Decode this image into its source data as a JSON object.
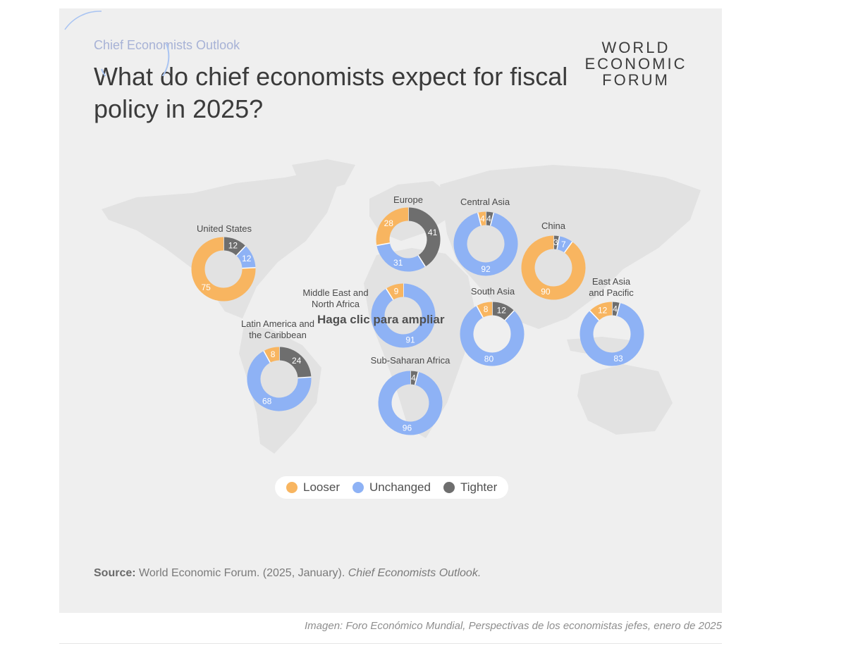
{
  "header": {
    "eyebrow": "Chief Economists Outlook",
    "title": "What do chief economists expect for fiscal policy in 2025?"
  },
  "logo": {
    "line1": "WORLD",
    "line2": "ECONOMIC",
    "line3": "FORUM"
  },
  "overlay": {
    "zoom_hint": "Haga clic para ampliar"
  },
  "legend": {
    "items": [
      {
        "label": "Looser",
        "color": "#f8b560"
      },
      {
        "label": "Unchanged",
        "color": "#8eb2f5"
      },
      {
        "label": "Tighter",
        "color": "#6e6e6e"
      }
    ]
  },
  "source": {
    "label": "Source:",
    "text": "World Economic Forum. (2025, January).",
    "publication": "Chief Economists Outlook."
  },
  "caption": "Imagen: Foro Económico Mundial, Perspectivas de los economistas jefes, enero de 2025",
  "chart_data": {
    "type": "pie",
    "subtype": "donut",
    "title": "What do chief economists expect for fiscal policy in 2025?",
    "categories": [
      "Looser",
      "Unchanged",
      "Tighter"
    ],
    "colors": {
      "Looser": "#f8b560",
      "Unchanged": "#8eb2f5",
      "Tighter": "#6e6e6e"
    },
    "regions": [
      {
        "name": "United States",
        "values": {
          "Looser": 75,
          "Unchanged": 12,
          "Tighter": 12
        }
      },
      {
        "name": "Europe",
        "values": {
          "Looser": 28,
          "Unchanged": 31,
          "Tighter": 41
        }
      },
      {
        "name": "Central Asia",
        "values": {
          "Looser": 4,
          "Unchanged": 92,
          "Tighter": 4
        }
      },
      {
        "name": "China",
        "values": {
          "Looser": 90,
          "Unchanged": 7,
          "Tighter": 3
        }
      },
      {
        "name": "Middle East and North Africa",
        "values": {
          "Looser": 9,
          "Unchanged": 91,
          "Tighter": 0
        }
      },
      {
        "name": "South Asia",
        "values": {
          "Looser": 8,
          "Unchanged": 80,
          "Tighter": 12
        }
      },
      {
        "name": "East Asia and Pacific",
        "values": {
          "Looser": 12,
          "Unchanged": 83,
          "Tighter": 4
        }
      },
      {
        "name": "Latin America and the Caribbean",
        "values": {
          "Looser": 8,
          "Unchanged": 68,
          "Tighter": 24
        }
      },
      {
        "name": "Sub-Saharan Africa",
        "values": {
          "Looser": 0,
          "Unchanged": 96,
          "Tighter": 4
        }
      }
    ],
    "legend_position": "bottom-center"
  }
}
